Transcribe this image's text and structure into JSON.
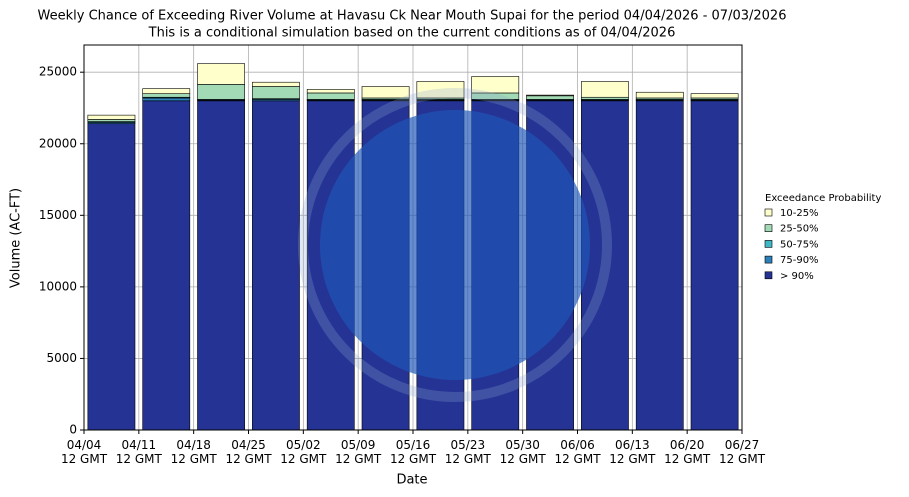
{
  "chart_data": {
    "type": "stacked_bar",
    "title": "Weekly Chance of Exceeding River Volume at Havasu Ck Near Mouth Supai for the period 04/04/2026 - 07/03/2026",
    "subtitle": "This is a conditional simulation based on the current conditions as of 04/04/2026",
    "x_label": "Date",
    "y_label": "Volume (AC-FT)",
    "legend_title": "Exceedance Probability",
    "xticks": [
      "04/04\n12 GMT",
      "04/11\n12 GMT",
      "04/18\n12 GMT",
      "04/25\n12 GMT",
      "05/02\n12 GMT",
      "05/09\n12 GMT",
      "05/16\n12 GMT",
      "05/23\n12 GMT",
      "05/30\n12 GMT",
      "06/06\n12 GMT",
      "06/13\n12 GMT",
      "06/20\n12 GMT",
      "06/27\n12 GMT"
    ],
    "ylim": [
      0,
      26900
    ],
    "yticks": [
      0,
      5000,
      10000,
      15000,
      20000,
      25000
    ],
    "grid": true,
    "legend": "right",
    "series": [
      {
        "name": "10-25%",
        "color": "#ffffcc",
        "values": [
          300,
          350,
          1450,
          300,
          250,
          800,
          1150,
          1150,
          50,
          1100,
          400,
          300
        ]
      },
      {
        "name": "25-50%",
        "color": "#a1dab4",
        "values": [
          150,
          250,
          1050,
          850,
          450,
          100,
          100,
          450,
          250,
          150,
          100,
          100
        ]
      },
      {
        "name": "50-75%",
        "color": "#41b6c4",
        "values": [
          50,
          50,
          50,
          50,
          50,
          50,
          50,
          50,
          50,
          50,
          50,
          50
        ]
      },
      {
        "name": "75-90%",
        "color": "#2c7fb8",
        "values": [
          100,
          200,
          50,
          100,
          50,
          50,
          50,
          50,
          50,
          50,
          50,
          50
        ]
      },
      {
        "name": "> 90%",
        "color": "#253494",
        "values": [
          21400,
          23000,
          23000,
          23000,
          23000,
          23000,
          23000,
          23000,
          23000,
          23000,
          23000,
          23000
        ]
      }
    ]
  }
}
